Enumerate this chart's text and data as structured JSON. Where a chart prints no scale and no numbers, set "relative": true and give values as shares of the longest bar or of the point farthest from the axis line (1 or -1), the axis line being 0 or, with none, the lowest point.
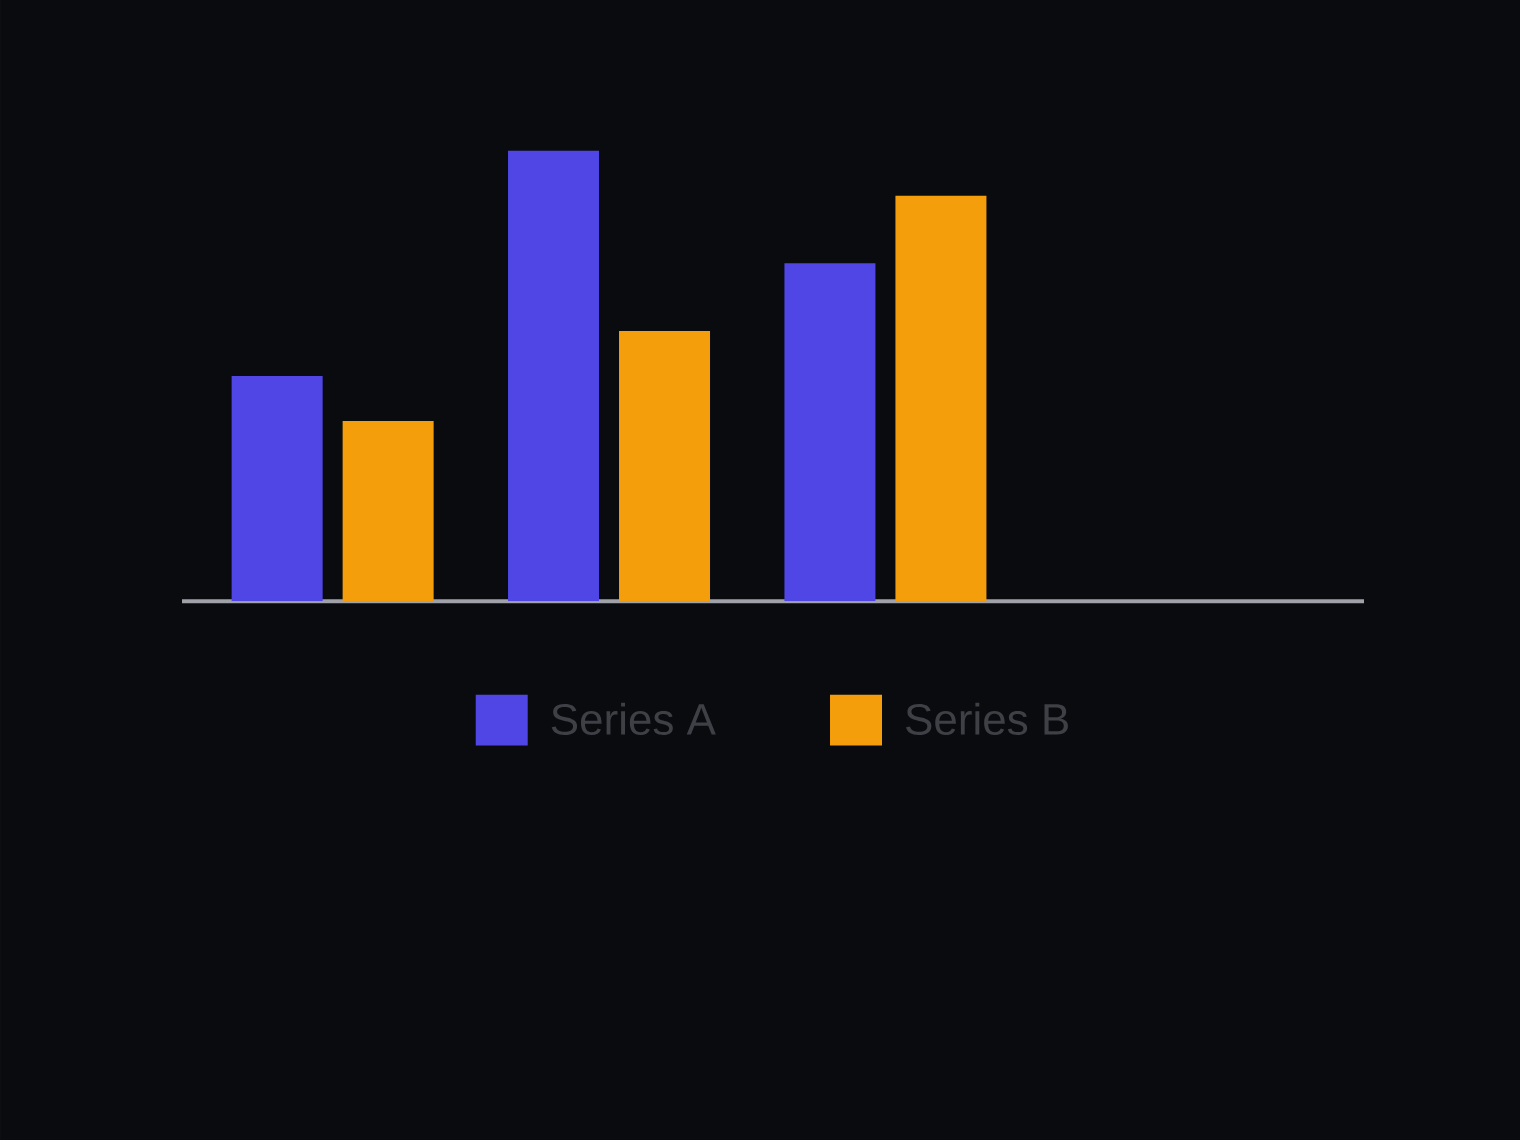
{
  "chart_data": {
    "type": "bar",
    "categories": [
      null,
      null,
      null
    ],
    "relative": true,
    "series": [
      {
        "name": "Series A",
        "color": "#4f46e5",
        "values": [
          0.5,
          1,
          0.75
        ]
      },
      {
        "name": "Series B",
        "color": "#f59e0b",
        "values": [
          0.4,
          0.6,
          0.9
        ]
      }
    ],
    "legend": "bottom"
  }
}
